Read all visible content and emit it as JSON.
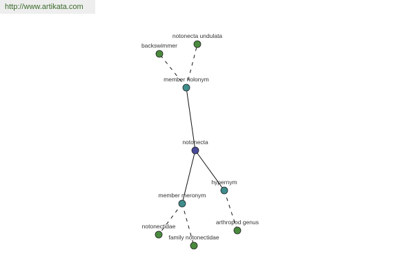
{
  "banner": {
    "url": "http://www.artikata.com"
  },
  "colors": {
    "root": "#4a4a9a",
    "relation": "#3f8c8c",
    "leaf": "#4a8a3e"
  },
  "nodes": [
    {
      "id": "notonecta",
      "label": "notonecta",
      "kind": "root"
    },
    {
      "id": "member_holonym",
      "label": "member holonym",
      "kind": "relation"
    },
    {
      "id": "backswimmer",
      "label": "backswimmer",
      "kind": "leaf"
    },
    {
      "id": "notonecta_undulata",
      "label": "notonecta undulata",
      "kind": "leaf"
    },
    {
      "id": "hypernym",
      "label": "hypernym",
      "kind": "relation"
    },
    {
      "id": "arthropod_genus",
      "label": "arthropod genus",
      "kind": "leaf"
    },
    {
      "id": "member_meronym",
      "label": "member meronym",
      "kind": "relation"
    },
    {
      "id": "notonectidae",
      "label": "notonectidae",
      "kind": "leaf"
    },
    {
      "id": "family_notonectidae",
      "label": "family notonectidae",
      "kind": "leaf"
    }
  ],
  "edges": [
    {
      "from": "notonecta",
      "to": "member_holonym",
      "style": "solid"
    },
    {
      "from": "notonecta",
      "to": "hypernym",
      "style": "solid"
    },
    {
      "from": "notonecta",
      "to": "member_meronym",
      "style": "solid"
    },
    {
      "from": "member_holonym",
      "to": "backswimmer",
      "style": "dashed"
    },
    {
      "from": "member_holonym",
      "to": "notonecta_undulata",
      "style": "dashed"
    },
    {
      "from": "hypernym",
      "to": "arthropod_genus",
      "style": "dashed"
    },
    {
      "from": "member_meronym",
      "to": "notonectidae",
      "style": "dashed"
    },
    {
      "from": "member_meronym",
      "to": "family_notonectidae",
      "style": "dashed"
    }
  ]
}
